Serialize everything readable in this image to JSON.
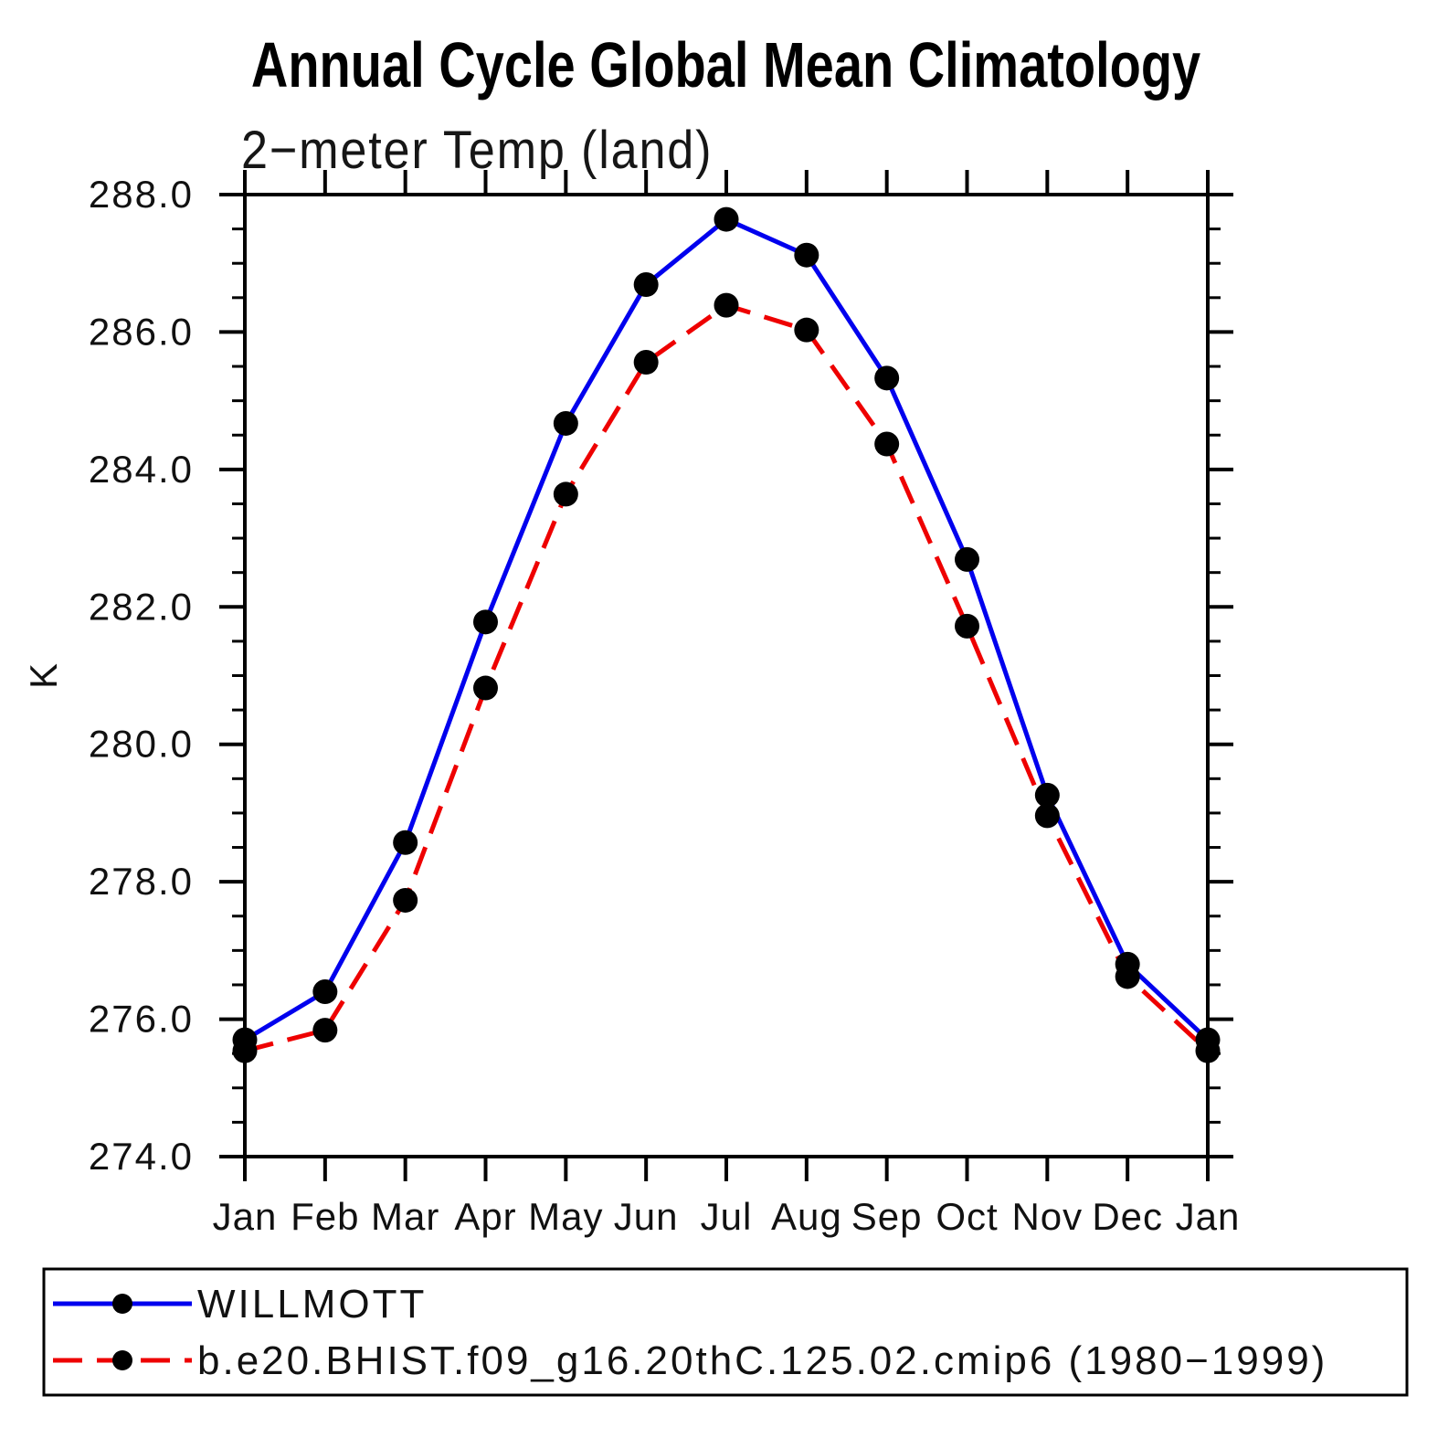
{
  "title": "Annual Cycle Global Mean Climatology",
  "subtitle": "2−meter Temp (land)",
  "y_axis_label": "K",
  "chart_data": {
    "type": "line",
    "title": "Annual Cycle Global Mean Climatology",
    "subtitle": "2−meter Temp (land)",
    "ylabel": "K",
    "xlabel": "",
    "categories": [
      "Jan",
      "Feb",
      "Mar",
      "Apr",
      "May",
      "Jun",
      "Jul",
      "Aug",
      "Sep",
      "Oct",
      "Nov",
      "Dec",
      "Jan"
    ],
    "ylim": [
      274.0,
      288.0
    ],
    "ytick_step": 2.0,
    "ytick_minor_step": 0.5,
    "ytick_labels": [
      "274.0",
      "276.0",
      "278.0",
      "280.0",
      "282.0",
      "284.0",
      "286.0",
      "288.0"
    ],
    "grid": false,
    "legend_position": "bottom",
    "frame_color": "#000000",
    "marker_radius_px": 13.5,
    "series": [
      {
        "name": "WILLMOTT",
        "color": "#0000ee",
        "line_style": "solid",
        "marker": "filled-circle",
        "marker_color": "#000000",
        "values": [
          275.7,
          276.4,
          278.57,
          281.78,
          284.67,
          286.69,
          287.64,
          287.12,
          285.33,
          282.69,
          279.26,
          276.8,
          275.7
        ]
      },
      {
        "name": "b.e20.BHIST.f09_g16.20thC.125.02.cmip6 (1980−1999)",
        "color": "#ee0000",
        "line_style": "dashed",
        "marker": "filled-circle",
        "marker_color": "#000000",
        "values": [
          275.54,
          275.84,
          277.73,
          280.82,
          283.64,
          285.56,
          286.39,
          286.03,
          284.37,
          281.72,
          278.96,
          276.62,
          275.54
        ]
      }
    ]
  }
}
